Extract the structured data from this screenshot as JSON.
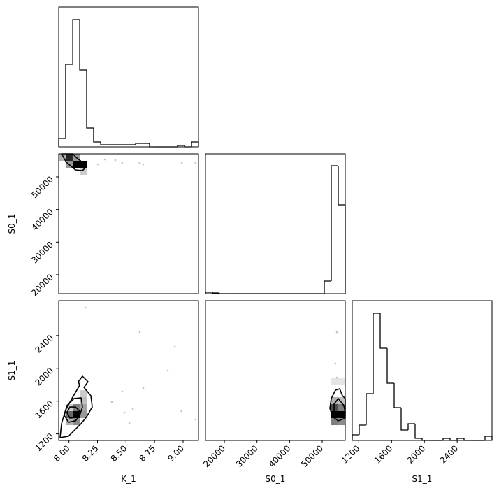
{
  "chart_data": [
    {
      "type": "histogram",
      "bins": [
        7.91,
        7.971,
        8.033,
        8.094,
        8.155,
        8.216,
        8.278,
        8.339,
        8.4,
        8.461,
        8.523,
        8.584,
        8.645,
        8.706,
        8.768,
        8.829,
        8.89,
        8.951,
        9.013,
        9.074,
        9.135
      ],
      "values": [
        12,
        118,
        182,
        110,
        27,
        7,
        3,
        3,
        3,
        3,
        3,
        5,
        5,
        0,
        0,
        0,
        0,
        2,
        0,
        7
      ],
      "xlim": [
        7.91,
        9.135
      ],
      "ylim": [
        0,
        200
      ],
      "color": "#000000"
    },
    {
      "type": "hist2d",
      "xlim": [
        7.91,
        9.135
      ],
      "ylim": [
        14200,
        57070
      ],
      "ylabel": "S0_1",
      "yticks": [
        20000,
        30000,
        40000,
        50000
      ],
      "color": "#000000",
      "cells": {
        "x": [
          7.971,
          8.033,
          8.094,
          7.91,
          8.033,
          7.971,
          8.094
        ],
        "y": [
          54927,
          52783,
          52783,
          54927,
          54927,
          52783,
          50640
        ],
        "values": [
          0.85,
          1,
          1,
          0.3,
          0.4,
          0.4,
          0.2
        ]
      },
      "points": {
        "x": [
          8.406,
          8.467,
          8.62,
          8.651,
          9.11,
          8.314,
          8.988,
          8.253
        ],
        "y": [
          55141,
          54284,
          54284,
          53855,
          54284,
          55355,
          54284,
          53855
        ]
      },
      "contours": [
        {
          "x": [
            7.935,
            7.977,
            8.057,
            8.118,
            8.155,
            8.118,
            8.069,
            8.033
          ],
          "y": [
            57070,
            54498,
            52140,
            51926,
            53212,
            54498,
            55784,
            57070
          ]
        }
      ]
    },
    {
      "type": "histogram",
      "bins": [
        14200,
        16344,
        18487,
        20631,
        22774,
        24918,
        27061,
        29205,
        31348,
        33492,
        35635,
        37779,
        39922,
        42066,
        44209,
        46353,
        48496,
        50640,
        52783,
        54927,
        57070
      ],
      "values": [
        2,
        1,
        0,
        0,
        0,
        0,
        0,
        0,
        0,
        0,
        0,
        0,
        0,
        0,
        0,
        0,
        0,
        18,
        183,
        127
      ],
      "xlim": [
        14200,
        57070
      ],
      "ylim": [
        0,
        200
      ],
      "color": "#000000"
    },
    {
      "type": "hist2d",
      "xlim": [
        7.91,
        9.135
      ],
      "ylim": [
        1120,
        2825
      ],
      "xlabel": "K_1",
      "ylabel": "S1_1",
      "xticks": [
        {
          "value": 8,
          "label": "8.00"
        },
        {
          "value": 8.25,
          "label": "8.25"
        },
        {
          "value": 8.5,
          "label": "8.50"
        },
        {
          "value": 8.75,
          "label": "8.75"
        },
        {
          "value": 9,
          "label": "9.00"
        }
      ],
      "yticks": [
        1200,
        1600,
        2000,
        2400
      ],
      "color": "#000000",
      "cells": {
        "x": [
          8.033,
          7.971,
          8.033,
          8.094,
          8.094,
          8.033,
          8.094,
          7.971,
          8.094,
          7.971
        ],
        "y": [
          1393,
          1393,
          1478,
          1478,
          1393,
          1307,
          1563,
          1307,
          1648,
          1478
        ],
        "values": [
          1,
          0.6,
          0.5,
          0.35,
          0.4,
          0.45,
          0.25,
          0.3,
          0.2,
          0.2
        ]
      },
      "points": {
        "x": [
          8.143,
          8.62,
          8.927,
          8.866,
          8.467,
          8.376,
          8.559,
          8.651,
          8.486,
          8.986,
          9.11,
          8.529
        ],
        "y": [
          2740,
          2441,
          2262,
          1973,
          1717,
          1589,
          1504,
          1759,
          1461,
          1478,
          1376,
          1333
        ]
      },
      "contours": [
        {
          "x": [
            7.983,
            8.008,
            8.057,
            8.094,
            8.069,
            8.008
          ],
          "y": [
            1461,
            1529,
            1529,
            1478,
            1402,
            1393
          ]
        },
        {
          "x": [
            7.959,
            7.983,
            8.045,
            8.106,
            8.118,
            8.094,
            8.057,
            7.996
          ],
          "y": [
            1427,
            1546,
            1632,
            1640,
            1529,
            1427,
            1359,
            1342
          ]
        },
        {
          "x": [
            7.922,
            7.935,
            7.971,
            8.033,
            8.094,
            8.082,
            8.118,
            8.167,
            8.131,
            8.192,
            8.204,
            8.155,
            8.106,
            8.057,
            7.996
          ],
          "y": [
            1155,
            1325,
            1495,
            1649,
            1794,
            1836,
            1904,
            1836,
            1768,
            1666,
            1529,
            1410,
            1325,
            1257,
            1172
          ]
        }
      ]
    },
    {
      "type": "hist2d",
      "xlim": [
        14200,
        57070
      ],
      "ylim": [
        1120,
        2825
      ],
      "xlabel": "S0_1",
      "xticks": [
        20000,
        30000,
        40000,
        50000
      ],
      "color": "#000000",
      "cells": {
        "x": [
          52783,
          52783,
          54926,
          52783,
          54926,
          52783,
          54926,
          54926,
          52783,
          54926
        ],
        "y": [
          1478,
          1393,
          1393,
          1307,
          1478,
          1563,
          1563,
          1307,
          1802,
          1802
        ],
        "values": [
          0.7,
          1,
          1,
          0.5,
          0.5,
          0.3,
          0.25,
          0.45,
          0.1,
          0.1
        ]
      },
      "points": {
        "x": [
          54497,
          54497,
          54069
        ],
        "y": [
          2441,
          1887,
          2058
        ]
      },
      "contours": [
        {
          "x": [
            52783,
            54069,
            55355,
            56213,
            57070,
            57070,
            54926,
            53212,
            52354
          ],
          "y": [
            1632,
            1734,
            1751,
            1666,
            1632,
            1393,
            1359,
            1410,
            1512
          ]
        },
        {
          "x": [
            53640,
            54926,
            56641,
            57070,
            54926,
            53640
          ],
          "y": [
            1563,
            1632,
            1546,
            1461,
            1410,
            1461
          ]
        }
      ]
    },
    {
      "type": "histogram",
      "bins": [
        1120,
        1205.25,
        1290.5,
        1375.75,
        1461,
        1546.25,
        1631.5,
        1716.75,
        1802,
        1887.25,
        1972.5,
        2057.75,
        2143,
        2228.25,
        2313.5,
        2398.75,
        2484,
        2569.25,
        2654.5,
        2739.75,
        2825
      ],
      "values": [
        8,
        22,
        67,
        182,
        132,
        82,
        47,
        15,
        24,
        3,
        0,
        0,
        0,
        3,
        0,
        3,
        0,
        0,
        0,
        6
      ],
      "xlim": [
        1120,
        2825
      ],
      "ylim": [
        0,
        200
      ],
      "xlabel": "S1_1",
      "xticks": [
        1200,
        1600,
        2000,
        2400
      ],
      "color": "#000000"
    }
  ]
}
